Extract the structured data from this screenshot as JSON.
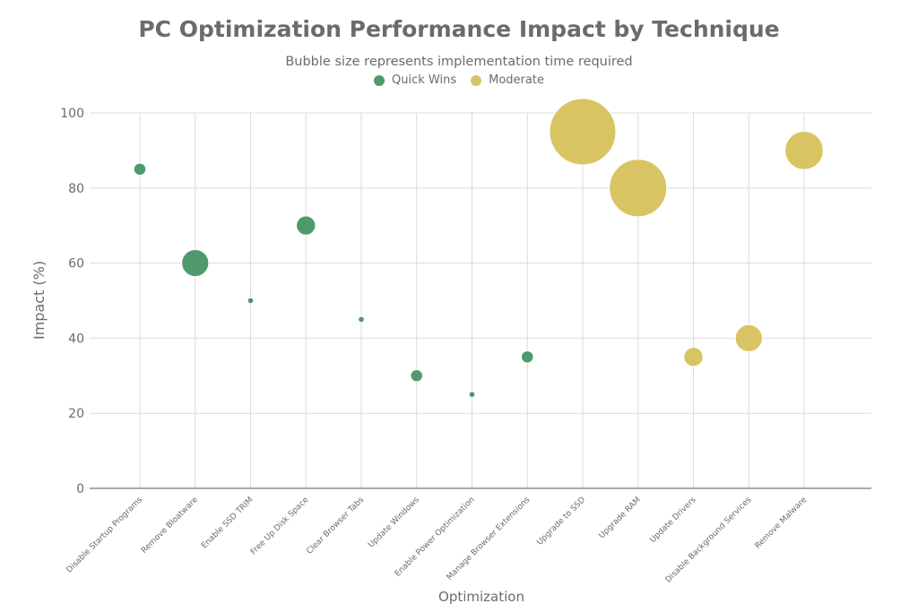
{
  "chart_data": {
    "type": "scatter",
    "title": "PC Optimization Performance Impact by Technique",
    "subtitle": "Bubble size represents implementation time required",
    "xlabel": "Optimization",
    "ylabel": "Impact (%)",
    "ylim": [
      0,
      100
    ],
    "yticks": [
      0,
      20,
      40,
      60,
      80,
      100
    ],
    "grid": true,
    "legend_position": "top-center",
    "categories": [
      "Disable Startup Programs",
      "Remove Bloatware",
      "Enable SSD TRIM",
      "Free Up Disk Space",
      "Clear Browser Tabs",
      "Update Windows",
      "Enable Power Optimization",
      "Manage Browser Extensions",
      "Upgrade to SSD",
      "Upgrade RAM",
      "Update Drivers",
      "Disable Background Services",
      "Remove Malware"
    ],
    "series": [
      {
        "name": "Quick Wins",
        "color": "#4e9a6c",
        "points": [
          {
            "x": "Disable Startup Programs",
            "y": 85,
            "size": 2
          },
          {
            "x": "Remove Bloatware",
            "y": 60,
            "size": 10
          },
          {
            "x": "Enable SSD TRIM",
            "y": 50,
            "size": 0.5
          },
          {
            "x": "Free Up Disk Space",
            "y": 70,
            "size": 5
          },
          {
            "x": "Clear Browser Tabs",
            "y": 45,
            "size": 0.5
          },
          {
            "x": "Update Windows",
            "y": 30,
            "size": 2
          },
          {
            "x": "Enable Power Optimization",
            "y": 25,
            "size": 0.5
          },
          {
            "x": "Manage Browser Extensions",
            "y": 35,
            "size": 2
          }
        ]
      },
      {
        "name": "Moderate",
        "color": "#d9c464",
        "points": [
          {
            "x": "Upgrade to SSD",
            "y": 95,
            "size": 60
          },
          {
            "x": "Upgrade RAM",
            "y": 80,
            "size": 45
          },
          {
            "x": "Update Drivers",
            "y": 35,
            "size": 5
          },
          {
            "x": "Disable Background Services",
            "y": 40,
            "size": 10
          },
          {
            "x": "Remove Malware",
            "y": 90,
            "size": 20
          }
        ]
      }
    ]
  }
}
